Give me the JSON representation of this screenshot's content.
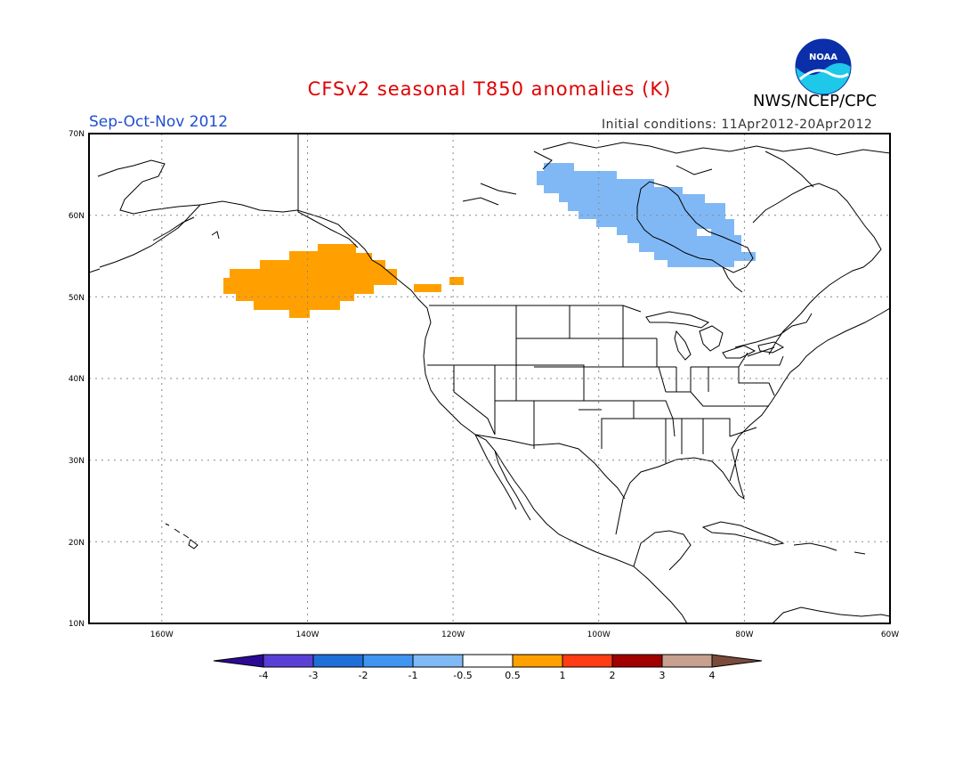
{
  "title": "CFSv2 seasonal T850 anomalies (K)",
  "agency": "NWS/NCEP/CPC",
  "season": "Sep-Oct-Nov 2012",
  "initial_conditions": "Initial conditions: 11Apr2012-20Apr2012",
  "logo_text": "NOAA",
  "lat_labels": [
    "70N",
    "60N",
    "50N",
    "40N",
    "30N",
    "20N",
    "10N"
  ],
  "lon_labels": [
    "160W",
    "140W",
    "120W",
    "100W",
    "80W",
    "60W"
  ],
  "colorbar": {
    "colors": [
      "#2c0a96",
      "#5a3fd6",
      "#1f6fd8",
      "#3f95f0",
      "#7fbaf6",
      "#ffffff",
      "#ffa000",
      "#ff3c14",
      "#a00000",
      "#c8a090",
      "#7a4a3a"
    ],
    "labels": [
      "-4",
      "-3",
      "-2",
      "-1",
      "-0.5",
      "0.5",
      "1",
      "2",
      "3",
      "4"
    ]
  },
  "anomalies": [
    {
      "name": "warm-anomaly-gulf-of-alaska",
      "color": "#ffa000",
      "value_range": "0.5 to 1"
    },
    {
      "name": "cold-anomaly-hudson-bay",
      "color": "#80b8f5",
      "value_range": "-1 to -0.5"
    }
  ]
}
